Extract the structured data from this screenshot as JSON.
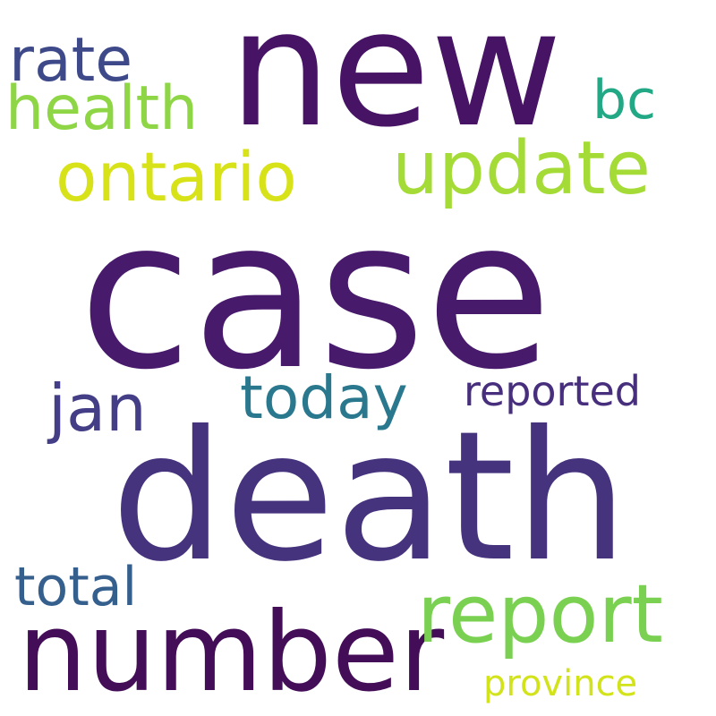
{
  "words": [
    {
      "id": "case",
      "text": "case",
      "color": "#481a6c"
    },
    {
      "id": "death",
      "text": "death",
      "color": "#46337e"
    },
    {
      "id": "new",
      "text": "new",
      "color": "#471365"
    },
    {
      "id": "number",
      "text": "number",
      "color": "#440d57"
    },
    {
      "id": "report",
      "text": "report",
      "color": "#7ad151"
    },
    {
      "id": "update",
      "text": "update",
      "color": "#a5db36"
    },
    {
      "id": "ontario",
      "text": "ontario",
      "color": "#d8e219"
    },
    {
      "id": "health",
      "text": "health",
      "color": "#8ed645"
    },
    {
      "id": "today",
      "text": "today",
      "color": "#2a788e"
    },
    {
      "id": "rate",
      "text": "rate",
      "color": "#3e4989"
    },
    {
      "id": "jan",
      "text": "jan",
      "color": "#433e85"
    },
    {
      "id": "bc",
      "text": "bc",
      "color": "#22a884"
    },
    {
      "id": "total",
      "text": "total",
      "color": "#355f8d"
    },
    {
      "id": "reported",
      "text": "reported",
      "color": "#472f7d"
    },
    {
      "id": "province",
      "text": "province",
      "color": "#d2e21b"
    }
  ]
}
